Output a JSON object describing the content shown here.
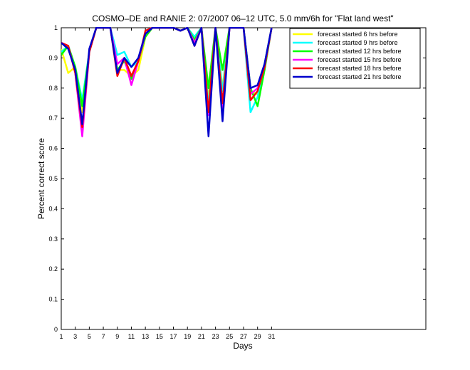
{
  "chart_data": {
    "type": "line",
    "title": "COSMO–DE and RANIE 2: 07/2007 06–12 UTC, 5.0 mm/6h for \"Flat land west\"",
    "xlabel": "Days",
    "ylabel": "Percent correct score",
    "xlim": [
      1,
      53
    ],
    "ylim": [
      0,
      1
    ],
    "xticks": [
      1,
      3,
      5,
      7,
      9,
      11,
      13,
      15,
      17,
      19,
      21,
      23,
      25,
      27,
      29,
      31
    ],
    "yticks": [
      0,
      0.1,
      0.2,
      0.3,
      0.4,
      0.5,
      0.6,
      0.7,
      0.8,
      0.9,
      1
    ],
    "ytick_labels": [
      "0",
      "0.1",
      "0.2",
      "0.3",
      "0.4",
      "0.5",
      "0.6",
      "0.7",
      "0.8",
      "0.9",
      "1"
    ],
    "grid": false,
    "legend_position": "top-right",
    "x": [
      1,
      2,
      3,
      4,
      5,
      6,
      7,
      8,
      9,
      10,
      11,
      12,
      13,
      14,
      15,
      16,
      17,
      18,
      19,
      20,
      21,
      22,
      23,
      24,
      25,
      26,
      27,
      28,
      29,
      30,
      31
    ],
    "series": [
      {
        "name": "forecast started 6 hrs before",
        "color": "#ffff00",
        "values": [
          0.93,
          0.85,
          0.87,
          0.72,
          0.92,
          1.0,
          1.0,
          1.0,
          0.86,
          0.86,
          0.84,
          0.86,
          0.97,
          1.0,
          1.0,
          1.0,
          1.0,
          0.99,
          1.0,
          0.96,
          1.0,
          0.76,
          1.0,
          0.8,
          1.0,
          1.0,
          1.0,
          0.79,
          0.78,
          0.88,
          1.0
        ]
      },
      {
        "name": "forecast started 9 hrs before",
        "color": "#00ffff",
        "values": [
          0.92,
          0.94,
          0.87,
          0.76,
          0.92,
          1.0,
          1.0,
          1.0,
          0.91,
          0.92,
          0.87,
          0.89,
          0.98,
          1.0,
          1.0,
          1.0,
          1.0,
          0.99,
          1.0,
          0.97,
          1.0,
          0.74,
          1.0,
          0.79,
          1.0,
          1.0,
          1.0,
          0.72,
          0.77,
          0.88,
          1.0
        ]
      },
      {
        "name": "forecast started 12 hrs before",
        "color": "#00ff00",
        "values": [
          0.91,
          0.94,
          0.87,
          0.74,
          0.92,
          1.0,
          1.0,
          1.0,
          0.86,
          0.89,
          0.83,
          0.89,
          0.97,
          1.0,
          1.0,
          1.0,
          1.0,
          0.99,
          1.0,
          0.96,
          1.0,
          0.8,
          1.0,
          0.86,
          1.0,
          1.0,
          1.0,
          0.8,
          0.74,
          0.86,
          1.0
        ]
      },
      {
        "name": "forecast started 15 hrs before",
        "color": "#ff00ff",
        "values": [
          0.95,
          0.94,
          0.85,
          0.64,
          0.92,
          1.0,
          1.0,
          1.0,
          0.88,
          0.9,
          0.81,
          0.89,
          0.98,
          1.0,
          1.0,
          1.0,
          1.0,
          0.99,
          1.0,
          0.95,
          1.0,
          0.71,
          1.0,
          0.72,
          1.0,
          1.0,
          1.0,
          0.78,
          0.8,
          0.87,
          1.0
        ]
      },
      {
        "name": "forecast started 18 hrs before",
        "color": "#ff0000",
        "values": [
          0.95,
          0.94,
          0.85,
          0.67,
          0.92,
          1.0,
          1.0,
          1.0,
          0.84,
          0.9,
          0.84,
          0.89,
          0.99,
          1.0,
          1.0,
          1.0,
          1.0,
          0.99,
          1.0,
          0.94,
          1.0,
          0.72,
          1.0,
          0.75,
          1.0,
          1.0,
          1.0,
          0.76,
          0.79,
          0.87,
          1.0
        ]
      },
      {
        "name": "forecast started 21 hrs before",
        "color": "#0000cc",
        "values": [
          0.95,
          0.93,
          0.86,
          0.68,
          0.93,
          1.0,
          1.0,
          1.0,
          0.85,
          0.9,
          0.87,
          0.9,
          0.98,
          1.0,
          1.0,
          1.0,
          1.0,
          0.99,
          1.0,
          0.94,
          1.0,
          0.64,
          1.0,
          0.69,
          1.0,
          1.0,
          1.0,
          0.8,
          0.81,
          0.88,
          1.0
        ]
      }
    ]
  }
}
